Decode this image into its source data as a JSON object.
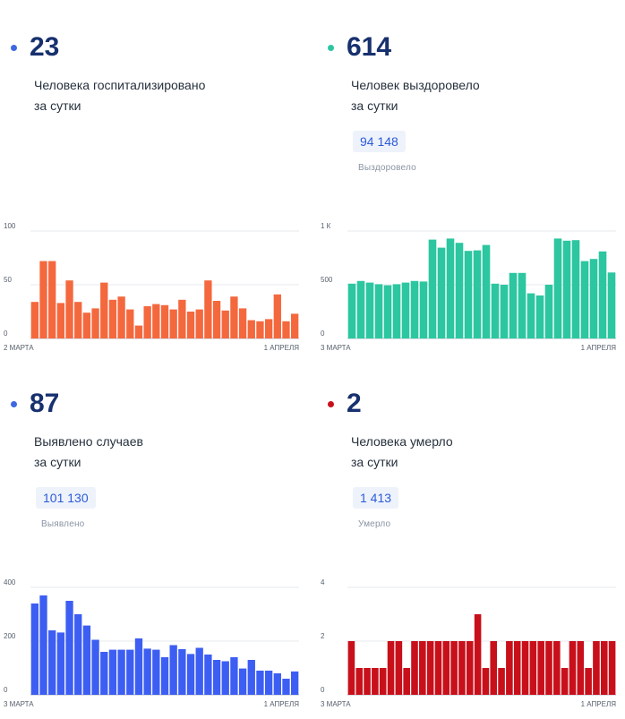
{
  "panels": [
    {
      "id": "hospitalized",
      "number": "23",
      "description": "Человека госпитализировано\nза сутки",
      "color": "#f4683e",
      "dot_color": "#3d68e0"
    },
    {
      "id": "recovered",
      "number": "614",
      "description": "Человек выздоровело\nза сутки",
      "total": "94 148",
      "total_label": "Выздоровело",
      "color": "#2cc6a0",
      "dot_color": "#2cc6a0"
    },
    {
      "id": "detected",
      "number": "87",
      "description": "Выявлено случаев\nза сутки",
      "total": "101 130",
      "total_label": "Выявлено",
      "color": "#3d5ef2",
      "dot_color": "#3d68e0"
    },
    {
      "id": "died",
      "number": "2",
      "description": "Человека умерло\nза сутки",
      "total": "1 413",
      "total_label": "Умерло",
      "color": "#c8101b",
      "dot_color": "#c8101b"
    }
  ],
  "chart_data": [
    {
      "type": "bar",
      "series_color": "#f4683e",
      "ylim": [
        0,
        100
      ],
      "yticks": [
        "0",
        "50",
        "100"
      ],
      "ytick_values": [
        0,
        50,
        100
      ],
      "x_start_label": "2 МАРТА",
      "x_end_label": "1 АПРЕЛЯ",
      "values": [
        34,
        72,
        72,
        33,
        54,
        34,
        24,
        28,
        52,
        36,
        39,
        27,
        12,
        30,
        32,
        31,
        27,
        36,
        25,
        27,
        54,
        35,
        26,
        39,
        28,
        17,
        16,
        18,
        41,
        16,
        23
      ],
      "grid": true
    },
    {
      "type": "bar",
      "series_color": "#2cc6a0",
      "ylim": [
        0,
        1000
      ],
      "yticks": [
        "0",
        "500",
        "1 К"
      ],
      "ytick_values": [
        0,
        500,
        1000
      ],
      "x_start_label": "3 МАРТА",
      "x_end_label": "1 АПРЕЛЯ",
      "values": [
        510,
        535,
        520,
        505,
        495,
        505,
        520,
        535,
        530,
        920,
        845,
        930,
        890,
        815,
        820,
        870,
        510,
        500,
        610,
        610,
        420,
        400,
        500,
        930,
        910,
        915,
        720,
        740,
        810,
        614
      ],
      "grid": true
    },
    {
      "type": "bar",
      "series_color": "#3d5ef2",
      "ylim": [
        0,
        400
      ],
      "yticks": [
        "0",
        "200",
        "400"
      ],
      "ytick_values": [
        0,
        200,
        400
      ],
      "x_start_label": "3 МАРТА",
      "x_end_label": "1 АПРЕЛЯ",
      "values": [
        340,
        370,
        240,
        232,
        350,
        300,
        258,
        205,
        160,
        168,
        168,
        168,
        210,
        172,
        168,
        140,
        185,
        170,
        152,
        175,
        150,
        130,
        125,
        140,
        98,
        130,
        90,
        90,
        80,
        60,
        87
      ],
      "grid": true
    },
    {
      "type": "bar",
      "series_color": "#c8101b",
      "ylim": [
        0,
        4
      ],
      "yticks": [
        "0",
        "2",
        "4"
      ],
      "ytick_values": [
        0,
        2,
        4
      ],
      "x_start_label": "3 МАРТА",
      "x_end_label": "1 АПРЕЛЯ",
      "values": [
        2,
        1,
        1,
        1,
        1,
        2,
        2,
        1,
        2,
        2,
        2,
        2,
        2,
        2,
        2,
        2,
        3,
        1,
        2,
        1,
        2,
        2,
        2,
        2,
        2,
        2,
        2,
        1,
        2,
        2,
        1,
        2,
        2,
        2
      ],
      "grid": true
    }
  ]
}
